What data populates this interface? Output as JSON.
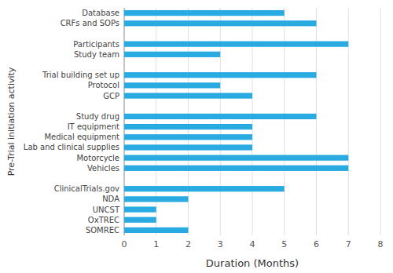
{
  "chart_data": {
    "type": "bar",
    "orientation": "horizontal",
    "categories": [
      "Database",
      "CRFs and SOPs",
      null,
      "Participants",
      "Study team",
      null,
      "Trial building set up",
      "Protocol",
      "GCP",
      null,
      "Study drug",
      "IT equipment",
      "Medical equipment",
      "Lab and clinical supplies",
      "Motorcycle",
      "Vehicles",
      null,
      "ClinicalTrials.gov",
      "NDA",
      "UNCST",
      "OxTREC",
      "SOMREC"
    ],
    "values": [
      5,
      6,
      null,
      7,
      3,
      null,
      6,
      3,
      4,
      null,
      6,
      4,
      4,
      4,
      7,
      7,
      null,
      5,
      2,
      1,
      1,
      2
    ],
    "color": "#29ABE2",
    "x_label": "Duration (Months)",
    "y_label": "Pre-Trial initiation activity",
    "xlim": [
      0,
      8
    ],
    "xticks": [
      0,
      1,
      2,
      3,
      4,
      5,
      6,
      7,
      8
    ],
    "grid": true
  }
}
